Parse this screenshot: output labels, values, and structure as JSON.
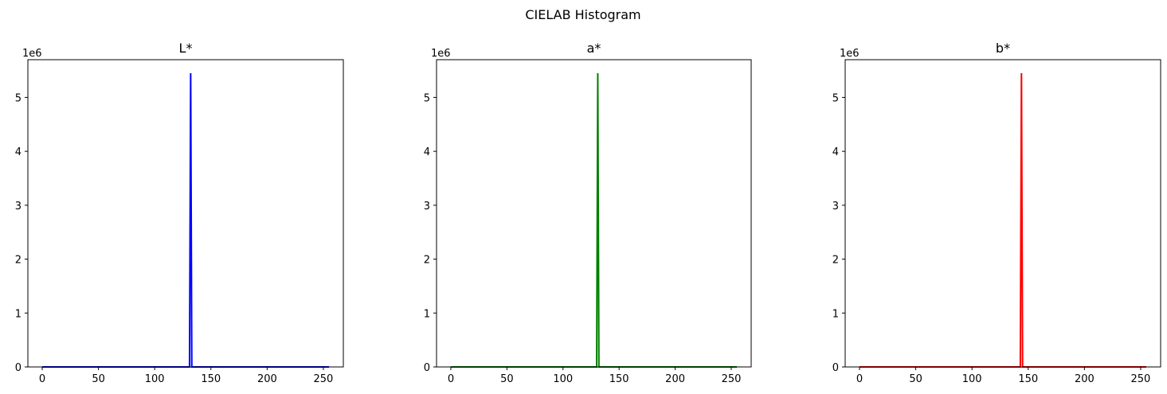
{
  "figure": {
    "suptitle": "CIELAB Histogram"
  },
  "chart_data": [
    {
      "type": "line",
      "title": "L*",
      "color": "#0000ff",
      "xlim": [
        -12.75,
        267.75
      ],
      "ylim": [
        0,
        5.7
      ],
      "y_scale_label": "1e6",
      "xticks": [
        0,
        50,
        100,
        150,
        200,
        250
      ],
      "yticks": [
        0,
        1,
        2,
        3,
        4,
        5
      ],
      "series": [
        {
          "x": [
            0,
            131,
            132,
            133,
            255
          ],
          "y": [
            0,
            0,
            5.45,
            0,
            0
          ]
        }
      ],
      "xlabel": "",
      "ylabel": "",
      "grid": false
    },
    {
      "type": "line",
      "title": "a*",
      "color": "#008000",
      "xlim": [
        -12.75,
        267.75
      ],
      "ylim": [
        0,
        5.7
      ],
      "y_scale_label": "1e6",
      "xticks": [
        0,
        50,
        100,
        150,
        200,
        250
      ],
      "yticks": [
        0,
        1,
        2,
        3,
        4,
        5
      ],
      "series": [
        {
          "x": [
            0,
            130,
            131,
            132,
            255
          ],
          "y": [
            0,
            0,
            5.45,
            0,
            0
          ]
        }
      ],
      "xlabel": "",
      "ylabel": "",
      "grid": false
    },
    {
      "type": "line",
      "title": "b*",
      "color": "#ff0000",
      "xlim": [
        -12.75,
        267.75
      ],
      "ylim": [
        0,
        5.7
      ],
      "y_scale_label": "1e6",
      "xticks": [
        0,
        50,
        100,
        150,
        200,
        250
      ],
      "yticks": [
        0,
        1,
        2,
        3,
        4,
        5
      ],
      "series": [
        {
          "x": [
            0,
            143,
            144,
            145,
            255
          ],
          "y": [
            0,
            0,
            5.45,
            0,
            0
          ]
        }
      ],
      "xlabel": "",
      "ylabel": "",
      "grid": false
    }
  ]
}
